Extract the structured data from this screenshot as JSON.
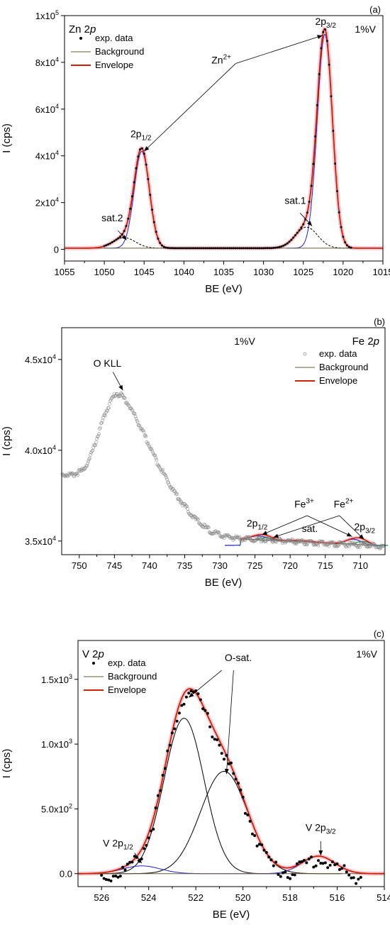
{
  "chart_data": [
    {
      "panel": "(a)",
      "type": "line",
      "title": "Zn 2p",
      "title_parts": {
        "element": "Zn 2",
        "orbital": "p"
      },
      "condition": "1%V",
      "xlabel": "BE (eV)",
      "ylabel": "I (cps)",
      "xlim": [
        1055,
        1015
      ],
      "x_reversed": true,
      "ylim": [
        -5000,
        100000
      ],
      "x_ticks": [
        1055,
        1050,
        1045,
        1040,
        1035,
        1030,
        1025,
        1020,
        1015
      ],
      "y_ticks": [
        {
          "value": 0,
          "mant": "0",
          "exp": ""
        },
        {
          "value": 20000,
          "mant": "2x10",
          "exp": "4"
        },
        {
          "value": 40000,
          "mant": "4x10",
          "exp": "4"
        },
        {
          "value": 60000,
          "mant": "6x10",
          "exp": "4"
        },
        {
          "value": 80000,
          "mant": "8x10",
          "exp": "4"
        },
        {
          "value": 100000,
          "mant": "1x10",
          "exp": "5"
        }
      ],
      "legend": [
        {
          "label": "exp. data",
          "style": "dots"
        },
        {
          "label": "Background",
          "style": "thin"
        },
        {
          "label": "Envelope",
          "style": "thick"
        }
      ],
      "legend_position": "top-left",
      "background_level": 500,
      "peaks": [
        {
          "role": "2p1/2",
          "center": 1045.3,
          "amp": 41500,
          "sigma": 0.95,
          "color": "#2222cc"
        },
        {
          "role": "2p3/2",
          "center": 1022.3,
          "amp": 91500,
          "sigma": 0.95,
          "color": "#2222cc"
        },
        {
          "role": "sat.1",
          "center": 1024.6,
          "amp": 9000,
          "sigma": 1.4,
          "color": "#000000",
          "dashed": true
        },
        {
          "role": "sat.2",
          "center": 1047.5,
          "amp": 4500,
          "sigma": 1.4,
          "color": "#000000",
          "dashed": true
        }
      ],
      "data_range": [
        1050,
        1019
      ],
      "data_step": 0.25,
      "annotations": [
        {
          "id": "zn-2p32",
          "main": "2p",
          "sub": "3/2",
          "x": 1022.2,
          "y": 96000
        },
        {
          "id": "zn-2p12",
          "main": "2p",
          "sub": "1/2",
          "x": 1045.4,
          "y": 48000
        },
        {
          "id": "zn-ion",
          "main": "Zn",
          "sup": "2+",
          "x": 1035.3,
          "y": 79500
        },
        {
          "id": "zn-sat1",
          "main": "sat.1",
          "x": 1026.0,
          "y": 19500
        },
        {
          "id": "zn-sat2",
          "main": "sat.2",
          "x": 1049.0,
          "y": 12000
        }
      ],
      "arrows": [
        {
          "from": [
            1033.5,
            79500
          ],
          "to": [
            1022.6,
            91500
          ]
        },
        {
          "from": [
            1033.5,
            79500
          ],
          "to": [
            1045.0,
            42000
          ]
        },
        {
          "from": [
            1025.4,
            15500
          ],
          "to": [
            1023.9,
            10000
          ]
        },
        {
          "from": [
            1048.3,
            8000
          ],
          "to": [
            1047.2,
            4000
          ]
        }
      ]
    },
    {
      "panel": "(b)",
      "type": "scatter",
      "title": "Fe 2p",
      "title_parts": {
        "element": "Fe 2",
        "orbital": "p"
      },
      "condition": "1%V",
      "xlabel": "BE (eV)",
      "ylabel": "I (cps)",
      "xlim": [
        752.5,
        706.5
      ],
      "x_reversed": true,
      "ylim": [
        34250,
        46750
      ],
      "x_ticks": [
        750,
        745,
        740,
        735,
        730,
        725,
        720,
        715,
        710
      ],
      "y_ticks": [
        {
          "value": 35000,
          "mant": "3.5x10",
          "exp": "4"
        },
        {
          "value": 40000,
          "mant": "4.0x10",
          "exp": "4"
        },
        {
          "value": 45000,
          "mant": "4.5x10",
          "exp": "4"
        }
      ],
      "legend": [
        {
          "label": "exp. data",
          "style": "circles"
        },
        {
          "label": "Background",
          "style": "thin"
        },
        {
          "label": "Envelope",
          "style": "thick"
        }
      ],
      "legend_position": "top-right",
      "survey_profile": [
        [
          752.5,
          38750
        ],
        [
          751,
          38700
        ],
        [
          749.5,
          38950
        ],
        [
          748.5,
          39600
        ],
        [
          747.5,
          40700
        ],
        [
          746.5,
          41900
        ],
        [
          745.5,
          42800
        ],
        [
          744.8,
          43200
        ],
        [
          744,
          43100
        ],
        [
          743,
          42600
        ],
        [
          742,
          41900
        ],
        [
          741,
          41100
        ],
        [
          740,
          40300
        ],
        [
          739,
          39500
        ],
        [
          738,
          38800
        ],
        [
          737,
          38100
        ],
        [
          736,
          37500
        ],
        [
          735,
          37000
        ],
        [
          734,
          36500
        ],
        [
          733,
          36100
        ],
        [
          732,
          35800
        ],
        [
          731,
          35550
        ],
        [
          730,
          35400
        ],
        [
          729,
          35300
        ],
        [
          728,
          35250
        ],
        [
          726,
          35200
        ],
        [
          724,
          35150
        ],
        [
          722,
          35100
        ],
        [
          720,
          35050
        ],
        [
          718,
          35000
        ],
        [
          716,
          34950
        ],
        [
          714,
          34900
        ],
        [
          712,
          34880
        ],
        [
          710,
          34850
        ],
        [
          708,
          34800
        ],
        [
          706.5,
          34750
        ]
      ],
      "fit_region": [
        727,
        708
      ],
      "fit_background": [
        [
          727,
          35100
        ],
        [
          720,
          35000
        ],
        [
          715,
          34900
        ],
        [
          708,
          34760
        ]
      ],
      "fit_peaks": [
        {
          "center": 724.5,
          "amp": 220,
          "sigma": 1.2,
          "color": "#2222cc"
        },
        {
          "center": 723.3,
          "amp": 130,
          "sigma": 1.0,
          "color": "#1a7f3c"
        },
        {
          "center": 711.0,
          "amp": 280,
          "sigma": 1.1,
          "color": "#2222cc"
        },
        {
          "center": 709.6,
          "amp": 190,
          "sigma": 0.9,
          "color": "#1a7f3c"
        },
        {
          "center": 718.5,
          "amp": 60,
          "sigma": 1.5,
          "color": "#000000"
        }
      ],
      "annotations": [
        {
          "id": "fe-okll",
          "main": "O KLL",
          "x": 746.0,
          "y": 44600
        },
        {
          "id": "fe-3",
          "main": "Fe",
          "sup": "3+",
          "x": 718.0,
          "y": 36850
        },
        {
          "id": "fe-2",
          "main": "Fe",
          "sup": "2+",
          "x": 712.4,
          "y": 36850
        },
        {
          "id": "fe-2p12",
          "main": "2p",
          "sub": "1/2",
          "x": 724.7,
          "y": 35800
        },
        {
          "id": "fe-2p32",
          "main": "2p",
          "sub": "3/2",
          "x": 709.4,
          "y": 35600
        },
        {
          "id": "fe-sat",
          "main": "sat.",
          "x": 717.2,
          "y": 35500
        }
      ],
      "arrows": [
        {
          "from": [
            745.2,
            44300
          ],
          "to": [
            743.8,
            43300
          ]
        },
        {
          "from": [
            717.6,
            36400
          ],
          "to": [
            724.0,
            35350
          ]
        },
        {
          "from": [
            717.6,
            36400
          ],
          "to": [
            711.2,
            35250
          ]
        },
        {
          "from": [
            713.0,
            36400
          ],
          "to": [
            722.4,
            35200
          ]
        },
        {
          "from": [
            713.0,
            36400
          ],
          "to": [
            709.5,
            35100
          ]
        }
      ]
    },
    {
      "panel": "(c)",
      "type": "line",
      "title": "V 2p",
      "title_parts": {
        "element": "V 2",
        "orbital": "p"
      },
      "condition": "1%V",
      "xlabel": "BE (eV)",
      "ylabel": "I (cps)",
      "xlim": [
        527,
        514
      ],
      "x_reversed": true,
      "ylim": [
        -100,
        1800
      ],
      "x_ticks": [
        526,
        524,
        522,
        520,
        518,
        516,
        514
      ],
      "y_ticks": [
        {
          "value": 0,
          "mant": "0.0",
          "exp": ""
        },
        {
          "value": 500,
          "mant": "5.0x10",
          "exp": "2"
        },
        {
          "value": 1000,
          "mant": "1.0x10",
          "exp": "3"
        },
        {
          "value": 1500,
          "mant": "1.5x10",
          "exp": "3"
        }
      ],
      "legend": [
        {
          "label": "exp. data",
          "style": "dots"
        },
        {
          "label": "Background",
          "style": "thin"
        },
        {
          "label": "Envelope",
          "style": "thick"
        }
      ],
      "legend_position": "top-left",
      "background_level": 0,
      "peaks": [
        {
          "role": "main",
          "center": 522.5,
          "amp": 1200,
          "sigma": 0.85,
          "color": "#000000"
        },
        {
          "role": "O-sat",
          "center": 520.8,
          "amp": 790,
          "sigma": 1.0,
          "color": "#000000"
        },
        {
          "role": "V 2p1/2",
          "center": 524.3,
          "amp": 60,
          "sigma": 0.8,
          "color": "#2222cc"
        },
        {
          "role": "V 2p3/2",
          "center": 516.8,
          "amp": 135,
          "sigma": 0.7,
          "color": "#2222cc"
        }
      ],
      "data_range": [
        526,
        515
      ],
      "data_step": 0.1,
      "annotations": [
        {
          "id": "v-osat",
          "main": "O-sat.",
          "x": 520.2,
          "y": 1640
        },
        {
          "id": "v-2p32",
          "main": "V 2p",
          "sub": "3/2",
          "x": 516.7,
          "y": 330
        },
        {
          "id": "v-2p12",
          "main": "V 2p",
          "sub": "1/2",
          "x": 525.3,
          "y": 210
        }
      ],
      "arrows": [
        {
          "from": [
            520.9,
            1570
          ],
          "to": [
            522.3,
            1360
          ]
        },
        {
          "from": [
            520.4,
            1570
          ],
          "to": [
            520.7,
            770
          ]
        },
        {
          "from": [
            516.7,
            250
          ],
          "to": [
            516.7,
            140
          ]
        },
        {
          "from": [
            524.6,
            160
          ],
          "to": [
            524.3,
            80
          ]
        }
      ]
    }
  ]
}
